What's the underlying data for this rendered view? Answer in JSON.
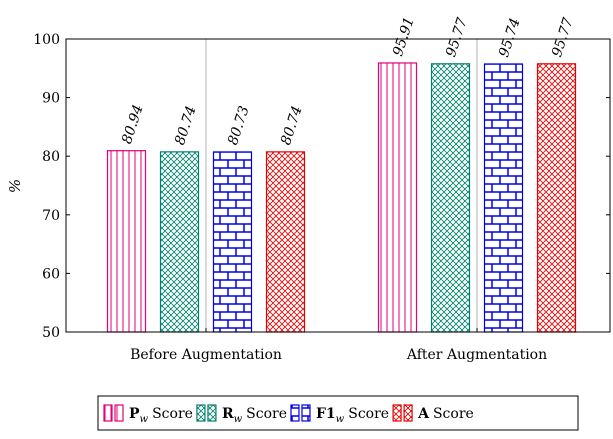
{
  "chart_data": {
    "type": "bar",
    "categories": [
      "Before Augmentation",
      "After Augmentation"
    ],
    "series": [
      {
        "name": "Pw Score",
        "values": [
          80.94,
          95.91
        ],
        "color": "#e0007a",
        "pattern": "vertical-lines"
      },
      {
        "name": "Rw Score",
        "values": [
          80.74,
          95.77
        ],
        "color": "#00806e",
        "pattern": "crosshatch"
      },
      {
        "name": "F1w Score",
        "values": [
          80.73,
          95.74
        ],
        "color": "#0000e6",
        "pattern": "bricks"
      },
      {
        "name": "A Score",
        "values": [
          80.74,
          95.77
        ],
        "color": "#e60000",
        "pattern": "crosshatch"
      }
    ],
    "data_labels": [
      [
        "80.94",
        "80.74",
        "80.73",
        "80.74"
      ],
      [
        "95.91",
        "95.77",
        "95.74",
        "95.77"
      ]
    ],
    "ylabel": "%",
    "ylim": [
      50,
      100
    ],
    "yticks": [
      50,
      60,
      70,
      80,
      90,
      100
    ],
    "grid": "vertical at categories",
    "legend_placement": "bottom-center",
    "legend": [
      {
        "main": "P",
        "sub": "w",
        "suffix": "Score"
      },
      {
        "main": "R",
        "sub": "w",
        "suffix": "Score"
      },
      {
        "main": "F1",
        "sub": "w",
        "suffix": "Score"
      },
      {
        "main": "A",
        "sub": "",
        "suffix": "Score"
      }
    ]
  }
}
